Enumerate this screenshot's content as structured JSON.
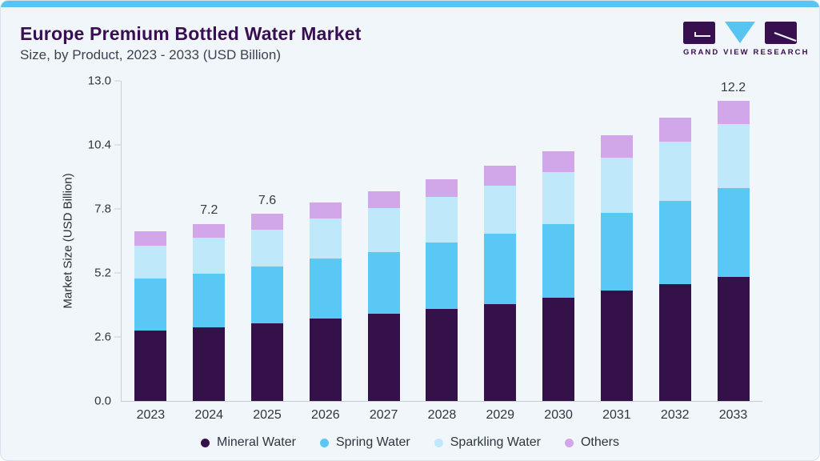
{
  "header": {
    "title": "Europe Premium Bottled Water Market",
    "subtitle": "Size, by Product, 2023 - 2033 (USD Billion)"
  },
  "logo": {
    "text": "GRAND VIEW RESEARCH",
    "mark_purple": "#381050",
    "mark_blue": "#58c4f1"
  },
  "chart_data": {
    "type": "bar",
    "stacked": true,
    "title": "Europe Premium Bottled Water Market Size, by Product, 2023 - 2033 (USD Billion)",
    "categories": [
      "2023",
      "2024",
      "2025",
      "2026",
      "2027",
      "2028",
      "2029",
      "2030",
      "2031",
      "2032",
      "2033"
    ],
    "series": [
      {
        "name": "Mineral Water",
        "color": "#341249",
        "values": [
          2.85,
          3.0,
          3.16,
          3.34,
          3.53,
          3.73,
          3.92,
          4.18,
          4.47,
          4.73,
          5.05
        ]
      },
      {
        "name": "Spring Water",
        "color": "#5ac8f5",
        "values": [
          2.11,
          2.18,
          2.29,
          2.43,
          2.53,
          2.69,
          2.86,
          3.01,
          3.18,
          3.41,
          3.58
        ]
      },
      {
        "name": "Sparkling Water",
        "color": "#bfe8fa",
        "values": [
          1.36,
          1.44,
          1.51,
          1.65,
          1.78,
          1.88,
          1.97,
          2.11,
          2.24,
          2.39,
          2.6
        ]
      },
      {
        "name": "Others",
        "color": "#d2a7ea",
        "values": [
          0.58,
          0.58,
          0.64,
          0.65,
          0.68,
          0.71,
          0.81,
          0.85,
          0.91,
          0.98,
          0.97
        ]
      }
    ],
    "totals": [
      6.9,
      7.2,
      7.6,
      8.07,
      8.52,
      9.01,
      9.56,
      10.15,
      10.8,
      11.51,
      12.2
    ],
    "total_labels": {
      "2024": "7.2",
      "2025": "7.6",
      "2033": "12.2"
    },
    "xlabel": "",
    "ylabel": "Market Size (USD Billion)",
    "ylim": [
      0,
      13.0
    ],
    "ytick_labels": [
      "0.0",
      "2.6",
      "5.2",
      "7.8",
      "10.4",
      "13.0"
    ],
    "yticks": [
      0.0,
      2.6,
      5.2,
      7.8,
      10.4,
      13.0
    ],
    "grid": false,
    "legend_position": "bottom"
  },
  "colors": {
    "card_background": "#f1f6fa",
    "top_strip": "#58c4f1",
    "card_border": "#d9e3ed",
    "title_text": "#3a0e52",
    "subtitle_text": "#3b4350",
    "axis_line": "#c7d0da",
    "tick_text": "#2e3640"
  }
}
